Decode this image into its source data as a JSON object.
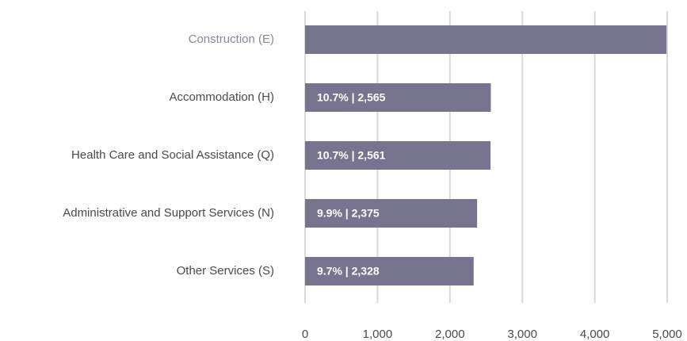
{
  "chart_data": {
    "type": "bar",
    "orientation": "horizontal",
    "categories": [
      "Construction (E)",
      "Accommodation (H)",
      "Health Care and Social Assistance (Q)",
      "Administrative and Support Services (N)",
      "Other Services (S)"
    ],
    "values": [
      4990,
      2565,
      2561,
      2375,
      2328
    ],
    "value_labels": [
      null,
      "10.7% | 2,565",
      "10.7% | 2,561",
      "9.9% | 2,375",
      "9.7% | 2,328"
    ],
    "color": "#77748f",
    "xlim": [
      0,
      5000
    ],
    "xticks": [
      0,
      {
        "value": 1000,
        "label": "1,000"
      },
      {
        "value": 2000,
        "label": "2,000"
      },
      {
        "value": 3000,
        "label": "3,000"
      },
      {
        "value": 4000,
        "label": "4,000"
      },
      {
        "value": 5000,
        "label": "5,000"
      }
    ],
    "grid": true
  }
}
